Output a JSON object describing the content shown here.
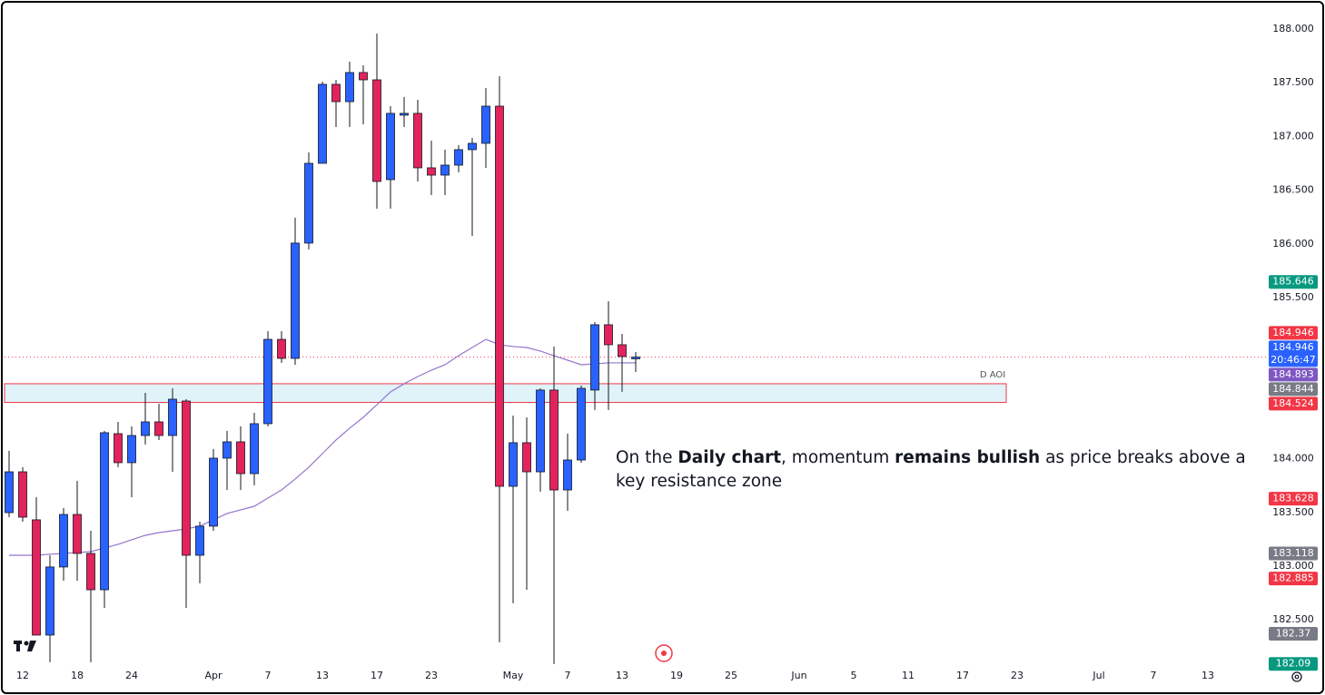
{
  "chart_data": {
    "type": "candlestick",
    "categories": [
      null,
      "12",
      null,
      null,
      null,
      "18",
      null,
      null,
      null,
      "24",
      null,
      null,
      null,
      null,
      null,
      "Apr",
      null,
      null,
      null,
      "7",
      null,
      null,
      null,
      "13",
      null,
      null,
      null,
      "17",
      null,
      null,
      null,
      "23",
      null,
      null,
      null,
      null,
      null,
      "May",
      null,
      null,
      null,
      "7",
      null,
      null,
      null,
      "13",
      null,
      null,
      null,
      "19",
      null,
      null,
      null,
      "25",
      null,
      null,
      null,
      null,
      "Jun",
      null,
      null,
      null,
      "5",
      null,
      null,
      null,
      "11",
      null,
      null,
      null,
      "17",
      null,
      null,
      null,
      "23",
      null,
      null,
      null,
      null,
      null,
      "Jul",
      null,
      null,
      null,
      "7",
      null,
      null,
      null,
      "13",
      null
    ],
    "open": [
      183.498,
      183.878,
      183.431,
      182.358,
      182.992,
      183.481,
      183.118,
      182.78,
      184.233,
      183.963,
      184.216,
      184.343,
      184.216,
      184.537,
      183.101,
      183.372,
      184.005,
      184.157,
      183.861,
      184.326,
      185.111,
      184.934,
      186.007,
      186.75,
      187.485,
      187.324,
      187.595,
      187.527,
      186.598,
      187.198,
      187.215,
      186.708,
      186.64,
      186.733,
      186.877,
      186.936,
      187.282,
      183.743,
      184.149,
      183.878,
      184.639,
      183.709,
      183.988,
      184.639,
      185.247,
      185.061,
      184.93,
      null,
      null,
      null,
      null,
      null,
      null,
      null,
      null,
      null,
      null,
      null,
      null,
      null,
      null,
      null,
      null,
      null,
      null,
      null,
      null,
      null,
      null,
      null,
      null,
      null,
      null,
      null,
      null,
      null,
      null,
      null,
      null,
      null,
      null,
      null,
      null,
      null,
      null,
      null,
      null,
      null,
      null,
      null
    ],
    "high": [
      184.073,
      183.921,
      183.642,
      183.101,
      183.541,
      183.794,
      183.329,
      184.258,
      184.343,
      184.301,
      184.613,
      184.512,
      184.655,
      184.554,
      183.414,
      184.09,
      184.258,
      184.301,
      184.427,
      185.187,
      185.187,
      186.243,
      186.851,
      187.51,
      187.527,
      187.696,
      187.662,
      187.958,
      187.282,
      187.367,
      187.341,
      186.961,
      186.877,
      186.919,
      186.986,
      187.451,
      187.561,
      184.402,
      184.385,
      184.655,
      185.044,
      184.233,
      184.681,
      185.272,
      185.466,
      185.162,
      184.993,
      null,
      null,
      null,
      null,
      null,
      null,
      null,
      null,
      null,
      null,
      null,
      null,
      null,
      null,
      null,
      null,
      null,
      null,
      null,
      null,
      null,
      null,
      null,
      null,
      null,
      null,
      null,
      null,
      null,
      null,
      null,
      null,
      null,
      null,
      null,
      null,
      null,
      null,
      null,
      null,
      null,
      null,
      null
    ],
    "low": [
      183.456,
      183.414,
      182.358,
      182.105,
      182.865,
      182.865,
      182.105,
      182.611,
      183.921,
      183.642,
      184.132,
      184.174,
      183.878,
      182.611,
      182.84,
      183.329,
      183.709,
      183.709,
      183.752,
      184.301,
      184.892,
      184.875,
      185.948,
      186.75,
      187.088,
      187.088,
      187.113,
      186.328,
      186.328,
      187.088,
      186.581,
      186.454,
      186.454,
      186.666,
      186.074,
      186.708,
      182.291,
      182.654,
      182.78,
      183.693,
      182.088,
      183.515,
      183.963,
      184.453,
      184.453,
      184.622,
      184.807,
      null,
      null,
      null,
      null,
      null,
      null,
      null,
      null,
      null,
      null,
      null,
      null,
      null,
      null,
      null,
      null,
      null,
      null,
      null,
      null,
      null,
      null,
      null,
      null,
      null,
      null,
      null,
      null,
      null,
      null,
      null,
      null,
      null,
      null,
      null,
      null,
      null,
      null,
      null,
      null,
      null,
      null,
      null
    ],
    "close": [
      183.878,
      183.456,
      182.358,
      182.992,
      183.481,
      183.118,
      182.78,
      184.242,
      183.963,
      184.216,
      184.343,
      184.216,
      184.554,
      183.101,
      183.372,
      184.005,
      184.157,
      183.861,
      184.326,
      185.111,
      184.934,
      186.007,
      186.75,
      187.485,
      187.324,
      187.595,
      187.527,
      186.581,
      187.215,
      187.215,
      186.708,
      186.64,
      186.733,
      186.877,
      186.936,
      187.282,
      183.743,
      184.149,
      183.878,
      184.639,
      183.709,
      183.988,
      184.655,
      185.247,
      185.061,
      184.951,
      184.946,
      null,
      null,
      null,
      null,
      null,
      null,
      null,
      null,
      null,
      null,
      null,
      null,
      null,
      null,
      null,
      null,
      null,
      null,
      null,
      null,
      null,
      null,
      null,
      null,
      null,
      null,
      null,
      null,
      null,
      null,
      null,
      null,
      null,
      null,
      null,
      null,
      null,
      null,
      null,
      null,
      null,
      null,
      null
    ],
    "up_color": "#2962ff",
    "down_color": "#e3245c",
    "ma": {
      "color": "#9575cd",
      "values": [
        183.101,
        183.101,
        183.101,
        183.111,
        183.118,
        183.127,
        183.135,
        183.169,
        183.203,
        183.245,
        183.287,
        183.312,
        183.329,
        183.346,
        183.372,
        183.431,
        183.49,
        183.524,
        183.557,
        183.633,
        183.709,
        183.811,
        183.921,
        184.047,
        184.174,
        184.284,
        184.385,
        184.503,
        184.622,
        184.698,
        184.765,
        184.824,
        184.875,
        184.959,
        185.035,
        185.111,
        185.061,
        185.044,
        185.035,
        185.002,
        184.959,
        184.917,
        184.875,
        184.883,
        184.892,
        184.892,
        184.893,
        null,
        null,
        null,
        null,
        null,
        null,
        null,
        null,
        null,
        null,
        null,
        null,
        null,
        null,
        null,
        null,
        null,
        null,
        null,
        null,
        null,
        null,
        null,
        null,
        null,
        null,
        null,
        null,
        null,
        null,
        null,
        null,
        null,
        null,
        null,
        null,
        null,
        null,
        null,
        null,
        null,
        null,
        null
      ]
    },
    "price_line_color": "#f23645",
    "ylim": [
      182.079,
      188.228
    ],
    "yticks": [
      {
        "value": 188,
        "label": "188.000"
      },
      {
        "value": 187.5,
        "label": "187.500"
      },
      {
        "value": 187,
        "label": "187.000"
      },
      {
        "value": 186.5,
        "label": "186.500"
      },
      {
        "value": 186,
        "label": "186.000"
      },
      {
        "value": 185.5,
        "label": "185.500"
      },
      {
        "value": 184,
        "label": "184.000"
      },
      {
        "value": 183.5,
        "label": "183.500"
      },
      {
        "value": 183,
        "label": "183.000"
      },
      {
        "value": 182.5,
        "label": "182.500"
      }
    ],
    "zone": {
      "label": "D AOI",
      "low": 184.524,
      "high": 184.698,
      "fill": "#dff3f9",
      "stroke": "#f23645"
    },
    "price_tags": [
      {
        "value": 185.646,
        "color": "#089981"
      },
      {
        "value": 184.946,
        "color": "#f23645"
      },
      {
        "value": 184.946,
        "color": "#2962ff",
        "sublabel": "20:46:47"
      },
      {
        "value": 184.893,
        "color": "#7e57c2"
      },
      {
        "value": 184.844,
        "color": "#787b86"
      },
      {
        "value": 184.524,
        "color": "#f23645"
      },
      {
        "value": 183.628,
        "color": "#f23645"
      },
      {
        "value": 183.118,
        "color": "#787b86"
      },
      {
        "value": 182.885,
        "color": "#f23645"
      },
      {
        "value": 182.37,
        "color": "#787b86"
      },
      {
        "value": 182.09,
        "color": "#089981"
      }
    ],
    "annotation": [
      {
        "text": "On the "
      },
      {
        "text": "Daily chart",
        "bold": true
      },
      {
        "text": ", momentum "
      },
      {
        "text": "remains bullish",
        "bold": true
      },
      {
        "text": " as price breaks above a key resistance zone"
      }
    ]
  }
}
